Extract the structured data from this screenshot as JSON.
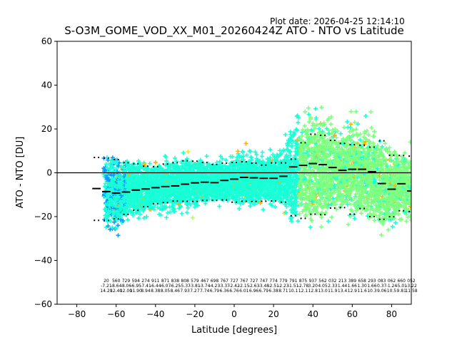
{
  "plot_date": "Plot date: 2026-04-25 12:14:10",
  "chart_data": {
    "type": "scatter",
    "title": "S-O3M_GOME_VOD_XX_M01_20260424Z ATO - NTO vs Latitude",
    "xlabel": "Latitude [degrees]",
    "ylabel": "ATO - NTO [DU]",
    "xlim": [
      -90,
      90
    ],
    "ylim": [
      -60,
      60
    ],
    "xticks": [
      -80,
      -60,
      -40,
      -20,
      0,
      20,
      40,
      60,
      80
    ],
    "yticks": [
      -60,
      -40,
      -20,
      0,
      20,
      40,
      60
    ],
    "xtick_labels": [
      "−80",
      "−60",
      "−40",
      "−20",
      "0",
      "20",
      "40",
      "60",
      "80"
    ],
    "ytick_labels": [
      "−60",
      "−40",
      "−20",
      "0",
      "20",
      "40",
      "60"
    ],
    "zero_line": 0,
    "grid": false,
    "colors": {
      "spring_green": "#7fff7f",
      "cyan_green": "#19ffd8",
      "yellow_green": "#b2ff4c",
      "yellow": "#f2e600",
      "light_blue": "#0a9bff",
      "dark_blue": "#0000ee",
      "orange": "#ffae00"
    },
    "bin_lat": [
      -70,
      -65,
      -60,
      -55,
      -50,
      -45,
      -40,
      -35,
      -30,
      -25,
      -20,
      -15,
      -10,
      -5,
      0,
      5,
      10,
      15,
      20,
      25,
      30,
      35,
      40,
      45,
      50,
      55,
      60,
      65,
      70,
      75,
      80,
      85,
      90
    ],
    "median": [
      -7.2,
      -8.6,
      -9.3,
      -8.8,
      -7.9,
      -7.4,
      -6.8,
      -6.3,
      -6.0,
      -5.2,
      -4.6,
      -4.3,
      -4.5,
      -3.5,
      -2.9,
      -2.1,
      -2.3,
      -2.5,
      -2.5,
      -1.6,
      2.7,
      3.4,
      4.2,
      3.7,
      2.4,
      1.1,
      1.6,
      1.6,
      0.5,
      -4.9,
      -7.5,
      -5.0,
      -8.3
    ],
    "upper": [
      7.0,
      6.7,
      6.0,
      4.6,
      4.1,
      3.0,
      2.8,
      4.0,
      4.6,
      5.5,
      5.3,
      4.7,
      3.8,
      4.4,
      4.7,
      5.0,
      4.4,
      3.5,
      4.5,
      4.5,
      6.2,
      13.7,
      17.6,
      17.1,
      14.8,
      13.4,
      12.8,
      12.6,
      11.7,
      14.6,
      8.0,
      7.9,
      7.6
    ],
    "lower": [
      -21.7,
      -21.8,
      -21.0,
      -19.0,
      -17.1,
      -15.5,
      -14.1,
      -13.6,
      -12.9,
      -13.0,
      -13.1,
      -12.6,
      -12.6,
      -12.4,
      -13.4,
      -13.0,
      -13.1,
      -13.0,
      -12.9,
      -13.4,
      -19.6,
      -20.8,
      -18.9,
      -19.1,
      -16.1,
      -15.9,
      -18.9,
      -16.3,
      -20.0,
      -21.2,
      -20.1,
      -17.3,
      -17.7
    ],
    "bin_stats": [
      {
        "lat": -65,
        "n": "20",
        "mean": "-7.21",
        "std": "14.20"
      },
      {
        "lat": -60,
        "n": "560",
        "mean": "-8.64",
        "std": "12.40"
      },
      {
        "lat": -55,
        "n": "729",
        "mean": "-8.06",
        "std": "12.00"
      },
      {
        "lat": -50,
        "n": "594",
        "mean": "-6.95",
        "std": "11.90"
      },
      {
        "lat": -45,
        "n": "274",
        "mean": "-7.41",
        "std": "8.94"
      },
      {
        "lat": -40,
        "n": "911",
        "mean": "-6.44",
        "std": "8.38"
      },
      {
        "lat": -35,
        "n": "871",
        "mean": "-6.07",
        "std": "8.05"
      },
      {
        "lat": -30,
        "n": "838",
        "mean": "-6.25",
        "std": "8.46"
      },
      {
        "lat": -25,
        "n": "808",
        "mean": "-5.37",
        "std": "7.93"
      },
      {
        "lat": -20,
        "n": "579",
        "mean": "-3.81",
        "std": "7.27"
      },
      {
        "lat": -15,
        "n": "467",
        "mean": "-3.74",
        "std": "7.74"
      },
      {
        "lat": -10,
        "n": "698",
        "mean": "-4.23",
        "std": "6.79"
      },
      {
        "lat": -5,
        "n": "767",
        "mean": "-3.37",
        "std": "6.36"
      },
      {
        "lat": 0,
        "n": "727",
        "mean": "-2.42",
        "std": "6.76"
      },
      {
        "lat": 5,
        "n": "767",
        "mean": "-2.15",
        "std": "6.01"
      },
      {
        "lat": 10,
        "n": "727",
        "mean": "-2.63",
        "std": "6.96"
      },
      {
        "lat": 15,
        "n": "747",
        "mean": "-3.48",
        "std": "6.79"
      },
      {
        "lat": 20,
        "n": "774",
        "mean": "-2.51",
        "std": "6.38"
      },
      {
        "lat": 25,
        "n": "779",
        "mean": "-2.23",
        "std": "8.71"
      },
      {
        "lat": 30,
        "n": "791",
        "mean": "-1.51",
        "std": "10.1"
      },
      {
        "lat": 35,
        "n": "875",
        "mean": "-2.78",
        "std": "12.1"
      },
      {
        "lat": 40,
        "n": "937",
        "mean": "3.20",
        "std": "12.8"
      },
      {
        "lat": 45,
        "n": "562",
        "mean": "4.05",
        "std": "13.0"
      },
      {
        "lat": 50,
        "n": "032",
        "mean": "2.33",
        "std": "11.9"
      },
      {
        "lat": 55,
        "n": "213",
        "mean": "1.44",
        "std": "13.4"
      },
      {
        "lat": 60,
        "n": "389",
        "mean": "1.66",
        "std": "12.9"
      },
      {
        "lat": 65,
        "n": "658",
        "mean": "1.30",
        "std": "11.6"
      },
      {
        "lat": 70,
        "n": "293",
        "mean": "1.66",
        "std": "10.3"
      },
      {
        "lat": 75,
        "n": "083",
        "mean": "0.37",
        "std": "9.06"
      },
      {
        "lat": 80,
        "n": "062",
        "mean": "-1.24",
        "std": "10.5"
      },
      {
        "lat": 85,
        "n": "660",
        "mean": "-5.01",
        "std": "9.81"
      },
      {
        "lat": 90,
        "n": "052",
        "mean": "-3.22",
        "std": "11.58"
      }
    ]
  }
}
